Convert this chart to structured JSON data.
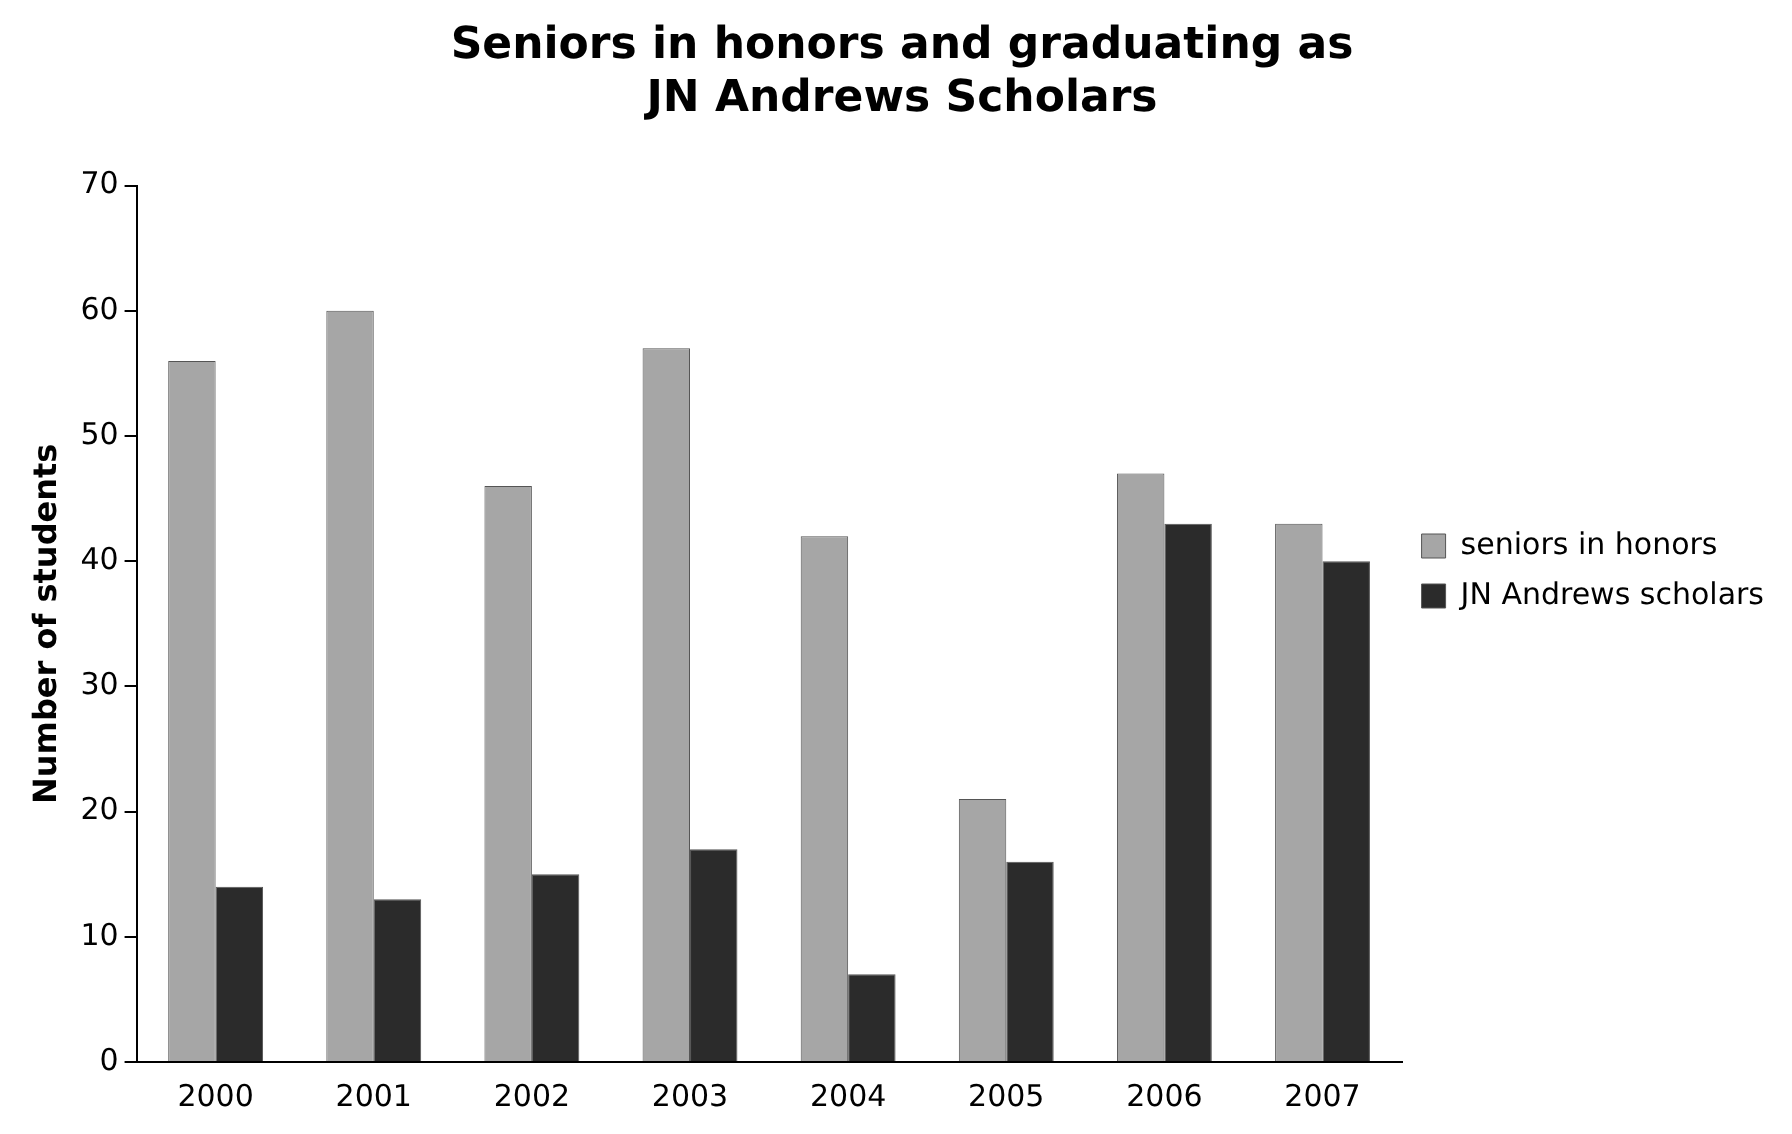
{
  "chart_data": {
    "type": "bar",
    "title": "Seniors in honors and graduating as JN Andrews Scholars",
    "ylabel": "Number of students",
    "categories": [
      "2000",
      "2001",
      "2002",
      "2003",
      "2004",
      "2005",
      "2006",
      "2007"
    ],
    "series": [
      {
        "name": "seniors in honors",
        "color": "#a6a6a6",
        "values": [
          56,
          60,
          46,
          57,
          42,
          21,
          47,
          43
        ]
      },
      {
        "name": "JN Andrews scholars",
        "color": "#2b2b2b",
        "values": [
          14,
          13,
          15,
          17,
          7,
          16,
          43,
          40
        ]
      }
    ],
    "ylim": [
      0,
      70
    ],
    "yticks": [
      0,
      10,
      20,
      30,
      40,
      50,
      60,
      70
    ],
    "grid": false,
    "legend": "right"
  }
}
